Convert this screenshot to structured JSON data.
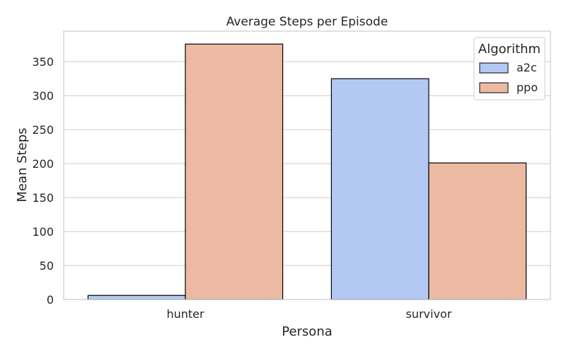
{
  "chart_data": {
    "type": "bar",
    "title": "Average Steps per Episode",
    "xlabel": "Persona",
    "ylabel": "Mean Steps",
    "categories": [
      "hunter",
      "survivor"
    ],
    "series": [
      {
        "name": "a2c",
        "values": [
          6,
          325
        ],
        "color": "#b3c9f4"
      },
      {
        "name": "ppo",
        "values": [
          376,
          201
        ],
        "color": "#ecbaa3"
      }
    ],
    "ylim": [
      0,
      395
    ],
    "yticks": [
      "0",
      "50",
      "100",
      "150",
      "200",
      "250",
      "300",
      "350"
    ],
    "grid": "horizontal",
    "legend": {
      "title": "Algorithm",
      "placement": "top-right"
    }
  }
}
